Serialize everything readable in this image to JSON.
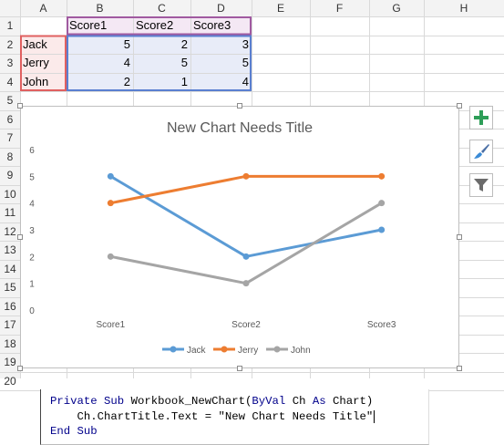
{
  "sheet": {
    "columns": [
      "A",
      "B",
      "C",
      "D",
      "E",
      "F",
      "G",
      "H"
    ],
    "rows": [
      "1",
      "2",
      "3",
      "4",
      "5",
      "6",
      "7",
      "8",
      "9",
      "10",
      "11",
      "12",
      "13",
      "14",
      "15",
      "16",
      "17",
      "18",
      "19",
      "20"
    ],
    "table": {
      "headers": [
        "Score1",
        "Score2",
        "Score3"
      ],
      "names": [
        "Jack",
        "Jerry",
        "John"
      ],
      "values": [
        [
          5,
          2,
          3
        ],
        [
          4,
          5,
          5
        ],
        [
          2,
          1,
          4
        ]
      ]
    }
  },
  "chart_data": {
    "type": "line",
    "title": "New Chart Needs Title",
    "categories": [
      "Score1",
      "Score2",
      "Score3"
    ],
    "series": [
      {
        "name": "Jack",
        "values": [
          5,
          2,
          3
        ],
        "color": "#5b9bd5"
      },
      {
        "name": "Jerry",
        "values": [
          4,
          5,
          5
        ],
        "color": "#ed7d31"
      },
      {
        "name": "John",
        "values": [
          2,
          1,
          4
        ],
        "color": "#a5a5a5"
      }
    ],
    "ylim": [
      0,
      6
    ],
    "yticks": [
      "0",
      "1",
      "2",
      "3",
      "4",
      "5",
      "6"
    ],
    "grid": false,
    "legend": "bottom"
  },
  "chart_tools": [
    {
      "name": "chart-elements-icon",
      "glyph": "plus"
    },
    {
      "name": "chart-styles-icon",
      "glyph": "brush"
    },
    {
      "name": "chart-filters-icon",
      "glyph": "funnel"
    }
  ],
  "code": {
    "line1_kw1": "Private",
    "line1_kw2": "Sub",
    "line1_rest1": " Workbook_NewChart(",
    "line1_kw3": "ByVal",
    "line1_rest2": " Ch ",
    "line1_kw4": "As",
    "line1_rest3": " Chart)",
    "line2": "    Ch.ChartTitle.Text = \"New Chart Needs Title\"",
    "line3": "End Sub"
  }
}
